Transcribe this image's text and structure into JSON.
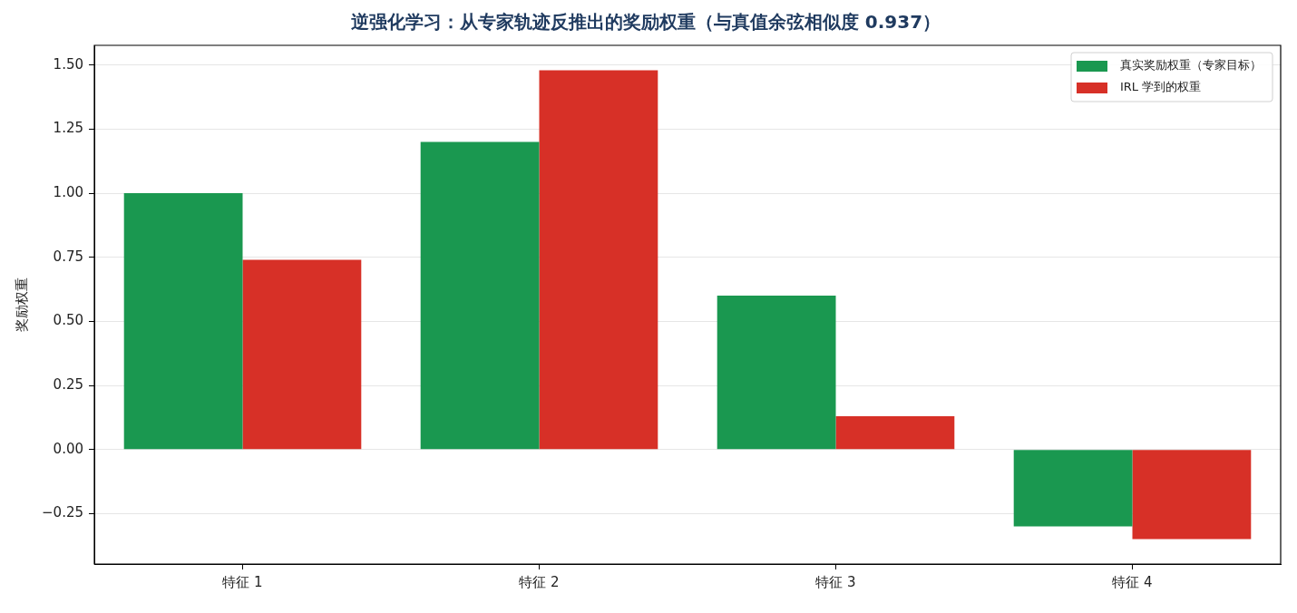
{
  "chart_data": {
    "type": "bar",
    "title": "逆强化学习：从专家轨迹反推出的奖励权重（与真值余弦相似度 0.937）",
    "ylabel": "奖励权重",
    "categories": [
      "特征 1",
      "特征 2",
      "特征 3",
      "特征 4"
    ],
    "series": [
      {
        "name": "真实奖励权重（专家目标）",
        "color": "#1a9850",
        "values": [
          1.0,
          1.2,
          0.6,
          -0.3
        ]
      },
      {
        "name": "IRL 学到的权重",
        "color": "#d73027",
        "values": [
          0.74,
          1.48,
          0.13,
          -0.35
        ]
      }
    ],
    "ylim": [
      -0.447,
      1.577
    ],
    "yticks": [
      {
        "value": -0.25,
        "label": "−0.25"
      },
      {
        "value": 0,
        "label": "0.00"
      },
      {
        "value": 0.25,
        "label": "0.25"
      },
      {
        "value": 0.5,
        "label": "0.50"
      },
      {
        "value": 0.75,
        "label": "0.75"
      },
      {
        "value": 1,
        "label": "1.00"
      },
      {
        "value": 1.25,
        "label": "1.25"
      },
      {
        "value": 1.5,
        "label": "1.50"
      }
    ],
    "grid": "y",
    "legend": "top right"
  }
}
